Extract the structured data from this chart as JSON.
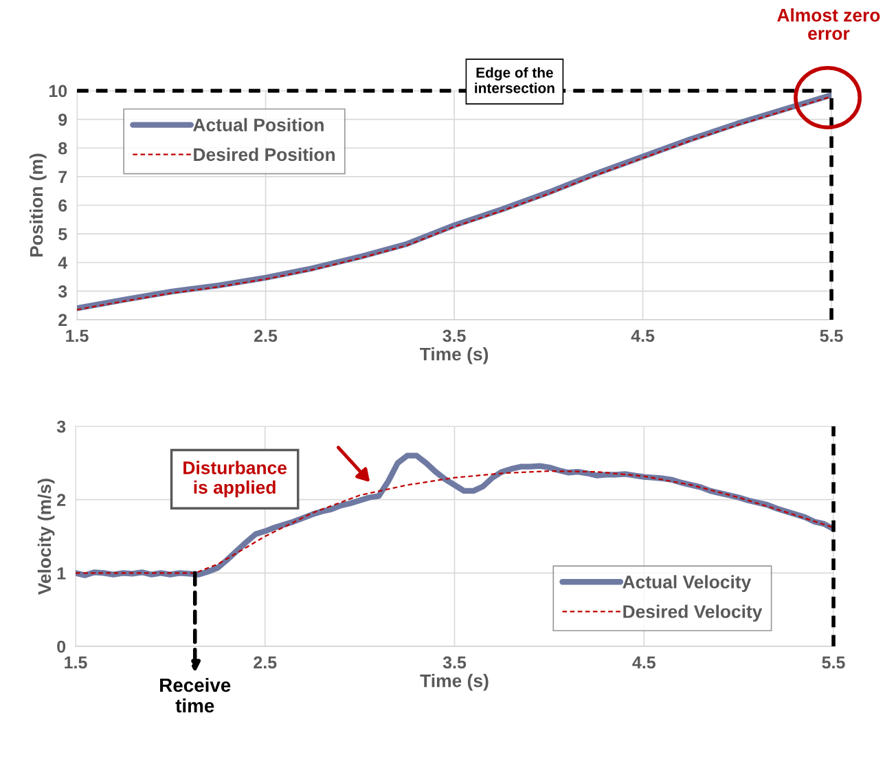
{
  "chart_data": [
    {
      "type": "line",
      "xlabel": "Time (s)",
      "ylabel": "Position (m)",
      "series": [
        {
          "name": "Actual Position",
          "color": "#6f7aa3",
          "line_style": "solid",
          "x": [
            1.5,
            1.75,
            2.0,
            2.25,
            2.5,
            2.75,
            3.0,
            3.25,
            3.5,
            3.75,
            4.0,
            4.25,
            4.5,
            4.75,
            5.0,
            5.25,
            5.5
          ],
          "values": [
            2.4,
            2.7,
            2.98,
            3.2,
            3.47,
            3.8,
            4.2,
            4.65,
            5.3,
            5.85,
            6.45,
            7.1,
            7.7,
            8.3,
            8.85,
            9.35,
            9.85
          ]
        },
        {
          "name": "Desired Position",
          "color": "#c00000",
          "line_style": "dashed",
          "x": [
            1.5,
            1.75,
            2.0,
            2.25,
            2.5,
            2.75,
            3.0,
            3.25,
            3.5,
            3.75,
            4.0,
            4.25,
            4.5,
            4.75,
            5.0,
            5.25,
            5.5
          ],
          "values": [
            2.35,
            2.65,
            2.93,
            3.15,
            3.42,
            3.75,
            4.15,
            4.6,
            5.25,
            5.8,
            6.4,
            7.05,
            7.65,
            8.25,
            8.8,
            9.3,
            9.8
          ]
        }
      ],
      "xlim": [
        1.5,
        5.5
      ],
      "xticks": [
        1.5,
        2.5,
        3.5,
        4.5,
        5.5
      ],
      "ylim": [
        2,
        10
      ],
      "yticks": [
        2,
        3,
        4,
        5,
        6,
        7,
        8,
        9,
        10
      ],
      "grid": true,
      "legend": "top left",
      "marker": "none",
      "ref_lines": [
        {
          "axis": "y",
          "value": 10,
          "color": "#000000",
          "line_style": "dashed"
        },
        {
          "axis": "x",
          "value": 5.5,
          "color": "#000000",
          "line_style": "dashed"
        }
      ],
      "annotations": [
        "Almost zero\nerror",
        "Edge of the\nintersection"
      ]
    },
    {
      "type": "line",
      "xlabel": "Time (s)",
      "ylabel": "Velocity (m/s)",
      "series": [
        {
          "name": "Actual Velocity",
          "color": "#6f7aa3",
          "line_style": "solid",
          "x": [
            1.5,
            1.55,
            1.6,
            1.65,
            1.7,
            1.75,
            1.8,
            1.85,
            1.9,
            1.95,
            2.0,
            2.05,
            2.1,
            2.15,
            2.2,
            2.25,
            2.3,
            2.35,
            2.4,
            2.45,
            2.5,
            2.55,
            2.6,
            2.65,
            2.7,
            2.75,
            2.8,
            2.85,
            2.9,
            2.95,
            3.0,
            3.05,
            3.1,
            3.15,
            3.2,
            3.25,
            3.3,
            3.35,
            3.4,
            3.45,
            3.5,
            3.55,
            3.6,
            3.65,
            3.7,
            3.75,
            3.8,
            3.85,
            3.9,
            3.95,
            4.0,
            4.05,
            4.1,
            4.15,
            4.2,
            4.25,
            4.3,
            4.35,
            4.4,
            4.45,
            4.5,
            4.55,
            4.6,
            4.65,
            4.7,
            4.75,
            4.8,
            4.85,
            4.9,
            4.95,
            5.0,
            5.05,
            5.1,
            5.15,
            5.2,
            5.25,
            5.3,
            5.35,
            5.4,
            5.45,
            5.5
          ],
          "values": [
            1.0,
            0.97,
            1.01,
            1.0,
            0.98,
            1.0,
            0.99,
            1.01,
            0.98,
            1.0,
            0.98,
            1.0,
            0.99,
            0.98,
            1.02,
            1.07,
            1.18,
            1.3,
            1.42,
            1.53,
            1.57,
            1.62,
            1.66,
            1.7,
            1.75,
            1.8,
            1.84,
            1.87,
            1.92,
            1.95,
            1.99,
            2.03,
            2.05,
            2.25,
            2.5,
            2.6,
            2.6,
            2.5,
            2.38,
            2.28,
            2.2,
            2.12,
            2.12,
            2.18,
            2.3,
            2.38,
            2.42,
            2.45,
            2.45,
            2.46,
            2.44,
            2.4,
            2.37,
            2.38,
            2.36,
            2.33,
            2.34,
            2.34,
            2.35,
            2.33,
            2.31,
            2.3,
            2.29,
            2.27,
            2.23,
            2.2,
            2.17,
            2.12,
            2.09,
            2.06,
            2.03,
            1.99,
            1.96,
            1.93,
            1.88,
            1.84,
            1.8,
            1.76,
            1.7,
            1.67,
            1.6
          ]
        },
        {
          "name": "Desired Velocity",
          "color": "#c00000",
          "line_style": "dashed",
          "x": [
            1.5,
            2.13,
            2.25,
            2.5,
            2.75,
            3.0,
            3.25,
            3.5,
            3.75,
            4.0,
            4.25,
            4.5,
            4.75,
            5.0,
            5.25,
            5.5
          ],
          "values": [
            1.0,
            1.0,
            1.12,
            1.5,
            1.82,
            2.06,
            2.2,
            2.3,
            2.36,
            2.39,
            2.38,
            2.32,
            2.2,
            2.03,
            1.83,
            1.62
          ]
        }
      ],
      "xlim": [
        1.5,
        5.5
      ],
      "xticks": [
        1.5,
        2.5,
        3.5,
        4.5,
        5.5
      ],
      "ylim": [
        0,
        3
      ],
      "yticks": [
        0,
        1,
        2,
        3
      ],
      "grid": true,
      "legend": "bottom right",
      "marker": "none",
      "ref_lines": [
        {
          "axis": "x",
          "value": 5.5,
          "color": "#000000",
          "line_style": "dashed"
        }
      ],
      "annotations": [
        "Disturbance\nis applied",
        {
          "text": "Receive\ntime",
          "x": 2.13,
          "y": 1.0
        }
      ]
    }
  ]
}
